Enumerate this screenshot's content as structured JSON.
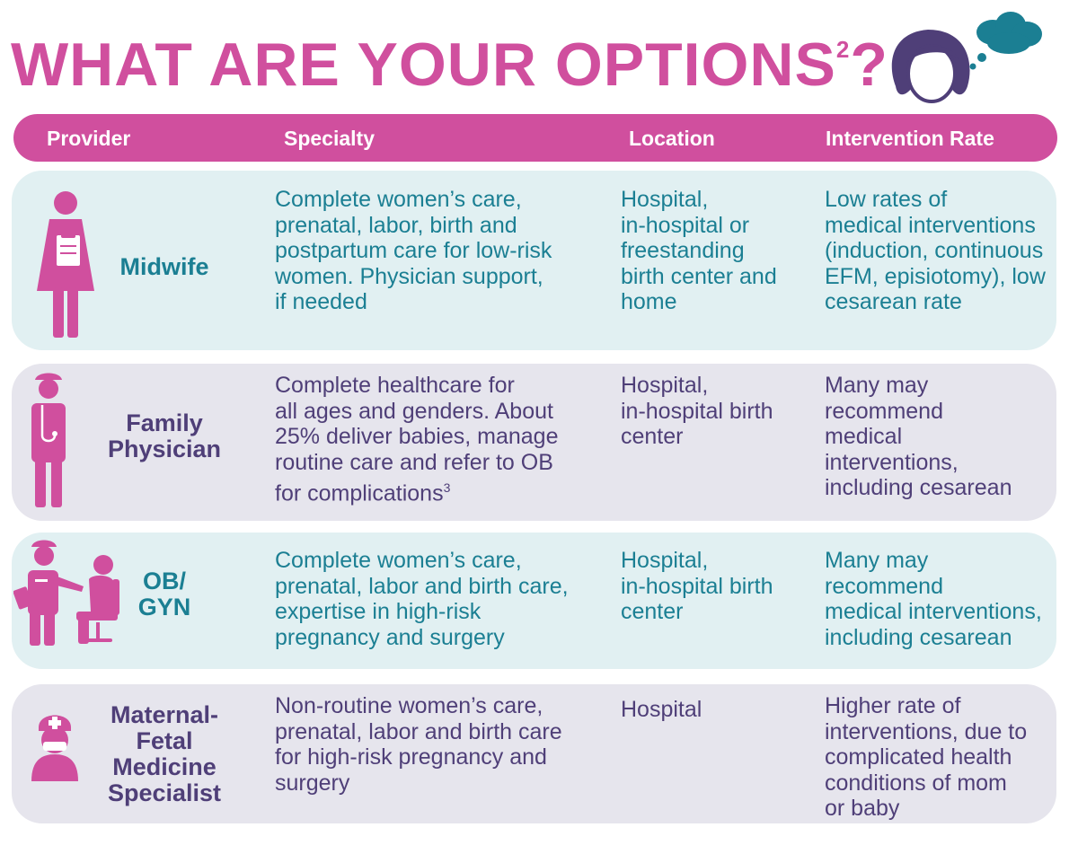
{
  "title": {
    "main": "WHAT ARE YOUR OPTIONS",
    "superscript": "2",
    "suffix": "?"
  },
  "header": {
    "provider": "Provider",
    "specialty": "Specialty",
    "location": "Location",
    "intervention": "Intervention Rate"
  },
  "rows": [
    {
      "name": "Midwife",
      "icon": "midwife-icon",
      "specialty": "Complete women’s care,\nprenatal, labor, birth and\npostpartum care for low-risk\nwomen. Physician support,\nif needed",
      "location": "Hospital,\nin-hospital or\nfreestanding\nbirth center and\nhome",
      "intervention": "Low rates of\nmedical interventions\n(induction, continuous\nEFM, episiotomy), low\ncesarean rate"
    },
    {
      "name": "Family\nPhysician",
      "icon": "physician-icon",
      "specialty_main": "Complete healthcare for\nall ages and genders. About\n25% deliver babies, manage\nroutine care and refer to OB\nfor complications",
      "specialty_sup": "3",
      "location": "Hospital,\nin-hospital birth\ncenter",
      "intervention": "Many may\nrecommend\nmedical\ninterventions,\nincluding cesarean"
    },
    {
      "name": "OB/\nGYN",
      "icon": "obgyn-icon",
      "specialty": "Complete women’s care,\nprenatal, labor and birth care,\nexpertise in high-risk\npregnancy and surgery",
      "location": "Hospital,\nin-hospital birth\ncenter",
      "intervention": "Many may\nrecommend\nmedical interventions,\nincluding cesarean"
    },
    {
      "name": "Maternal-\nFetal\nMedicine\nSpecialist",
      "icon": "specialist-icon",
      "specialty": "Non-routine women’s care,\nprenatal, labor and birth care\nfor high-risk pregnancy and\nsurgery",
      "location": "Hospital",
      "intervention": "Higher rate of\ninterventions, due to\ncomplicated health\nconditions of mom\nor baby"
    }
  ],
  "colors": {
    "accent_pink": "#d04f9e",
    "teal_text": "#1b7f93",
    "purple_text": "#4f3f78",
    "row_blue": "#e1f0f2",
    "row_gray": "#e6e5ed",
    "thought_cloud": "#1b7f93"
  }
}
